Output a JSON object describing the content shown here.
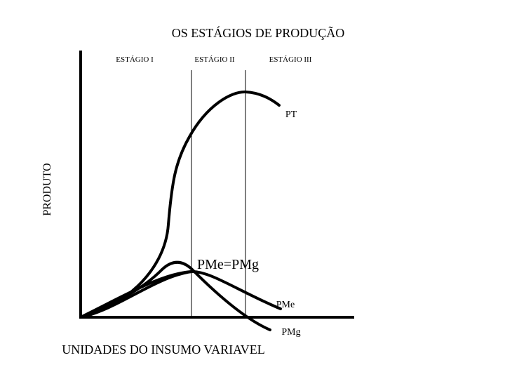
{
  "title": "OS ESTÁGIOS DE PRODUÇÃO",
  "stages": [
    "ESTÁGIO I",
    "ESTÁGIO II",
    "ESTÁGIO III"
  ],
  "axes": {
    "y_label": "PRODUTO",
    "x_label": "UNIDADES DO INSUMO VARIAVEL"
  },
  "curves": {
    "total": "PT",
    "average": "PMe",
    "marginal": "PMg"
  },
  "intersection": "PMe=PMg"
}
